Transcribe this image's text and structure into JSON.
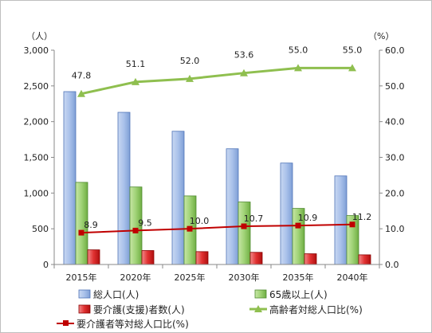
{
  "chart_data": {
    "type": "bar",
    "categories": [
      "2015年",
      "2020年",
      "2025年",
      "2030年",
      "2035年",
      "2040年"
    ],
    "y_left": {
      "unit_label": "（人）",
      "ylim": [
        0,
        3000
      ],
      "ticks": [
        "0",
        "500",
        "1,000",
        "1,500",
        "2,000",
        "2,500",
        "3,000"
      ]
    },
    "y_right": {
      "unit_label": "（%）",
      "ylim": [
        0,
        60
      ],
      "ticks": [
        "0.0",
        "10.0",
        "20.0",
        "30.0",
        "40.0",
        "50.0",
        "60.0"
      ]
    },
    "series": [
      {
        "name": "総人口(人)",
        "kind": "bar",
        "axis": "left",
        "color": "#9ab4e0",
        "values": [
          2420,
          2130,
          1865,
          1620,
          1420,
          1240
        ]
      },
      {
        "name": "65歳以上(人)",
        "kind": "bar",
        "axis": "left",
        "color": "#8cc466",
        "values": [
          1150,
          1085,
          960,
          875,
          785,
          685
        ]
      },
      {
        "name": "要介護(支援)者数(人)",
        "kind": "bar",
        "axis": "left",
        "color": "#d42a2a",
        "values": [
          205,
          195,
          180,
          170,
          150,
          135
        ]
      },
      {
        "name": "高齢者対総人口比(%)",
        "kind": "line",
        "axis": "right",
        "color": "#8fbf4f",
        "marker": "triangle",
        "values": [
          47.8,
          51.1,
          52.0,
          53.6,
          55.0,
          55.0
        ],
        "labels": [
          "47.8",
          "51.1",
          "52.0",
          "53.6",
          "55.0",
          "55.0"
        ]
      },
      {
        "name": "要介護者等対総人口比(%)",
        "kind": "line",
        "axis": "right",
        "color": "#c00000",
        "marker": "square",
        "values": [
          8.9,
          9.5,
          10.0,
          10.7,
          10.9,
          11.2
        ],
        "labels": [
          "8.9",
          "9.5",
          "10.0",
          "10.7",
          "10.9",
          "11.2"
        ]
      }
    ],
    "grid": false,
    "legend_position": "bottom"
  }
}
